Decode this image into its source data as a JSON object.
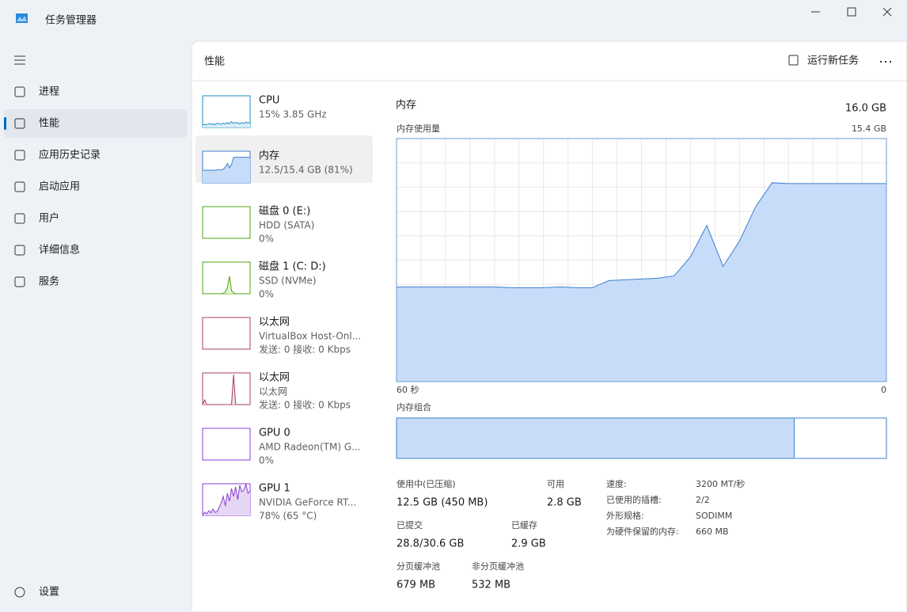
{
  "window": {
    "title": "任务管理器"
  },
  "nav": {
    "items": [
      "进程",
      "性能",
      "应用历史记录",
      "启动应用",
      "用户",
      "详细信息",
      "服务"
    ],
    "settings": "设置"
  },
  "header": {
    "title": "性能",
    "run_task": "运行新任务"
  },
  "thumbnail_ylim": [
    0,
    100
  ],
  "devices": [
    {
      "name": "CPU",
      "lines": [
        "15% 3.85 GHz"
      ],
      "color": "#1e8bc3",
      "fill": "#dbedf8",
      "spark": [
        8,
        10,
        9,
        12,
        10,
        11,
        9,
        13,
        12,
        10,
        14,
        11,
        15,
        12,
        18,
        13,
        16,
        14,
        12,
        15,
        13,
        17,
        14,
        15
      ]
    },
    {
      "name": "内存",
      "lines": [
        "12.5/15.4 GB (81%)"
      ],
      "color": "#3f7fd0",
      "fill": "#c6dcf8",
      "spark": [
        40,
        40,
        40,
        40,
        40,
        40,
        40,
        41,
        42,
        42,
        43,
        50,
        62,
        48,
        58,
        80,
        81,
        81,
        81,
        81,
        81,
        81,
        81,
        81
      ]
    },
    {
      "name": "磁盘 0 (E:)",
      "lines": [
        "HDD (SATA)",
        "0%"
      ],
      "color": "#4da60c",
      "fill": "#e4f3d4",
      "spark": [
        0,
        0,
        0,
        0,
        0,
        0,
        0,
        0,
        0,
        0,
        0,
        0,
        0,
        0,
        0,
        0,
        0,
        0,
        0,
        0,
        0,
        0,
        0,
        0
      ]
    },
    {
      "name": "磁盘 1 (C: D:)",
      "lines": [
        "SSD (NVMe)",
        "0%"
      ],
      "color": "#4da60c",
      "fill": "#e4f3d4",
      "spark": [
        0,
        0,
        0,
        0,
        0,
        0,
        0,
        0,
        0,
        0,
        2,
        5,
        20,
        55,
        10,
        3,
        0,
        0,
        0,
        0,
        0,
        0,
        0,
        0
      ]
    },
    {
      "name": "以太网",
      "lines": [
        "VirtualBox Host-Onl...",
        "发送: 0 接收: 0 Kbps"
      ],
      "color": "#a73e6b",
      "fill": "#f5dbe6",
      "spark": [
        0,
        0,
        0,
        0,
        0,
        0,
        0,
        0,
        0,
        0,
        0,
        0,
        0,
        0,
        0,
        0,
        0,
        0,
        0,
        0,
        0,
        0,
        0,
        0
      ]
    },
    {
      "name": "以太网",
      "lines": [
        "以太网",
        "发送: 0 接收: 0 Kbps"
      ],
      "color": "#a73e6b",
      "fill": "#f5dbe6",
      "spark": [
        0,
        15,
        0,
        0,
        0,
        0,
        0,
        0,
        0,
        0,
        0,
        0,
        0,
        0,
        0,
        95,
        0,
        0,
        0,
        0,
        0,
        0,
        0,
        0
      ]
    },
    {
      "name": "GPU 0",
      "lines": [
        "AMD Radeon(TM) G...",
        "0%"
      ],
      "color": "#8e3bd1",
      "fill": "#e6d6f6",
      "spark": [
        0,
        0,
        0,
        0,
        0,
        0,
        0,
        0,
        0,
        0,
        0,
        0,
        0,
        0,
        0,
        0,
        0,
        0,
        0,
        0,
        0,
        0,
        0,
        0
      ]
    },
    {
      "name": "GPU 1",
      "lines": [
        "NVIDIA GeForce RT...",
        "78% (65 °C)"
      ],
      "color": "#8e3bd1",
      "fill": "#e6d6f6",
      "spark": [
        0,
        10,
        5,
        15,
        8,
        20,
        10,
        12,
        25,
        40,
        60,
        30,
        70,
        45,
        85,
        60,
        90,
        50,
        95,
        75,
        80,
        98,
        70,
        78
      ]
    }
  ],
  "memory": {
    "title": "内存",
    "capacity": "16.0 GB",
    "chart_label": "内存使用量",
    "chart": {
      "type": "area",
      "values": [
        6.0,
        6.0,
        6.0,
        6.0,
        6.0,
        6.0,
        6.0,
        5.95,
        5.95,
        5.95,
        6.0,
        5.95,
        5.95,
        6.4,
        6.45,
        6.5,
        6.55,
        6.7,
        7.9,
        9.9,
        7.3,
        8.9,
        11.1,
        12.6,
        12.55,
        12.55,
        12.55,
        12.55,
        12.55,
        12.55,
        12.55
      ],
      "ymax": {
        "value": 15.4,
        "label": "15.4 GB"
      },
      "xlabels": [
        "60 秒",
        "0"
      ],
      "color": "#3f7fd0",
      "fill": "#c6dcf8"
    },
    "composition_label": "内存组合",
    "composition": {
      "in_use": 12.5
    },
    "stats": [
      {
        "label": "使用中(已压缩)",
        "value": "12.5 GB (450 MB)"
      },
      {
        "label": "可用",
        "value": "2.8 GB"
      },
      {
        "label": "已提交",
        "value": "28.8/30.6 GB"
      },
      {
        "label": "已缓存",
        "value": "2.9 GB"
      },
      {
        "label": "分页缓冲池",
        "value": "679 MB"
      },
      {
        "label": "非分页缓冲池",
        "value": "532 MB"
      }
    ],
    "details": [
      [
        "速度:",
        "3200 MT/秒"
      ],
      [
        "已使用的插槽:",
        "2/2"
      ],
      [
        "外形规格:",
        "SODIMM"
      ],
      [
        "为硬件保留的内存:",
        "660 MB"
      ]
    ]
  }
}
